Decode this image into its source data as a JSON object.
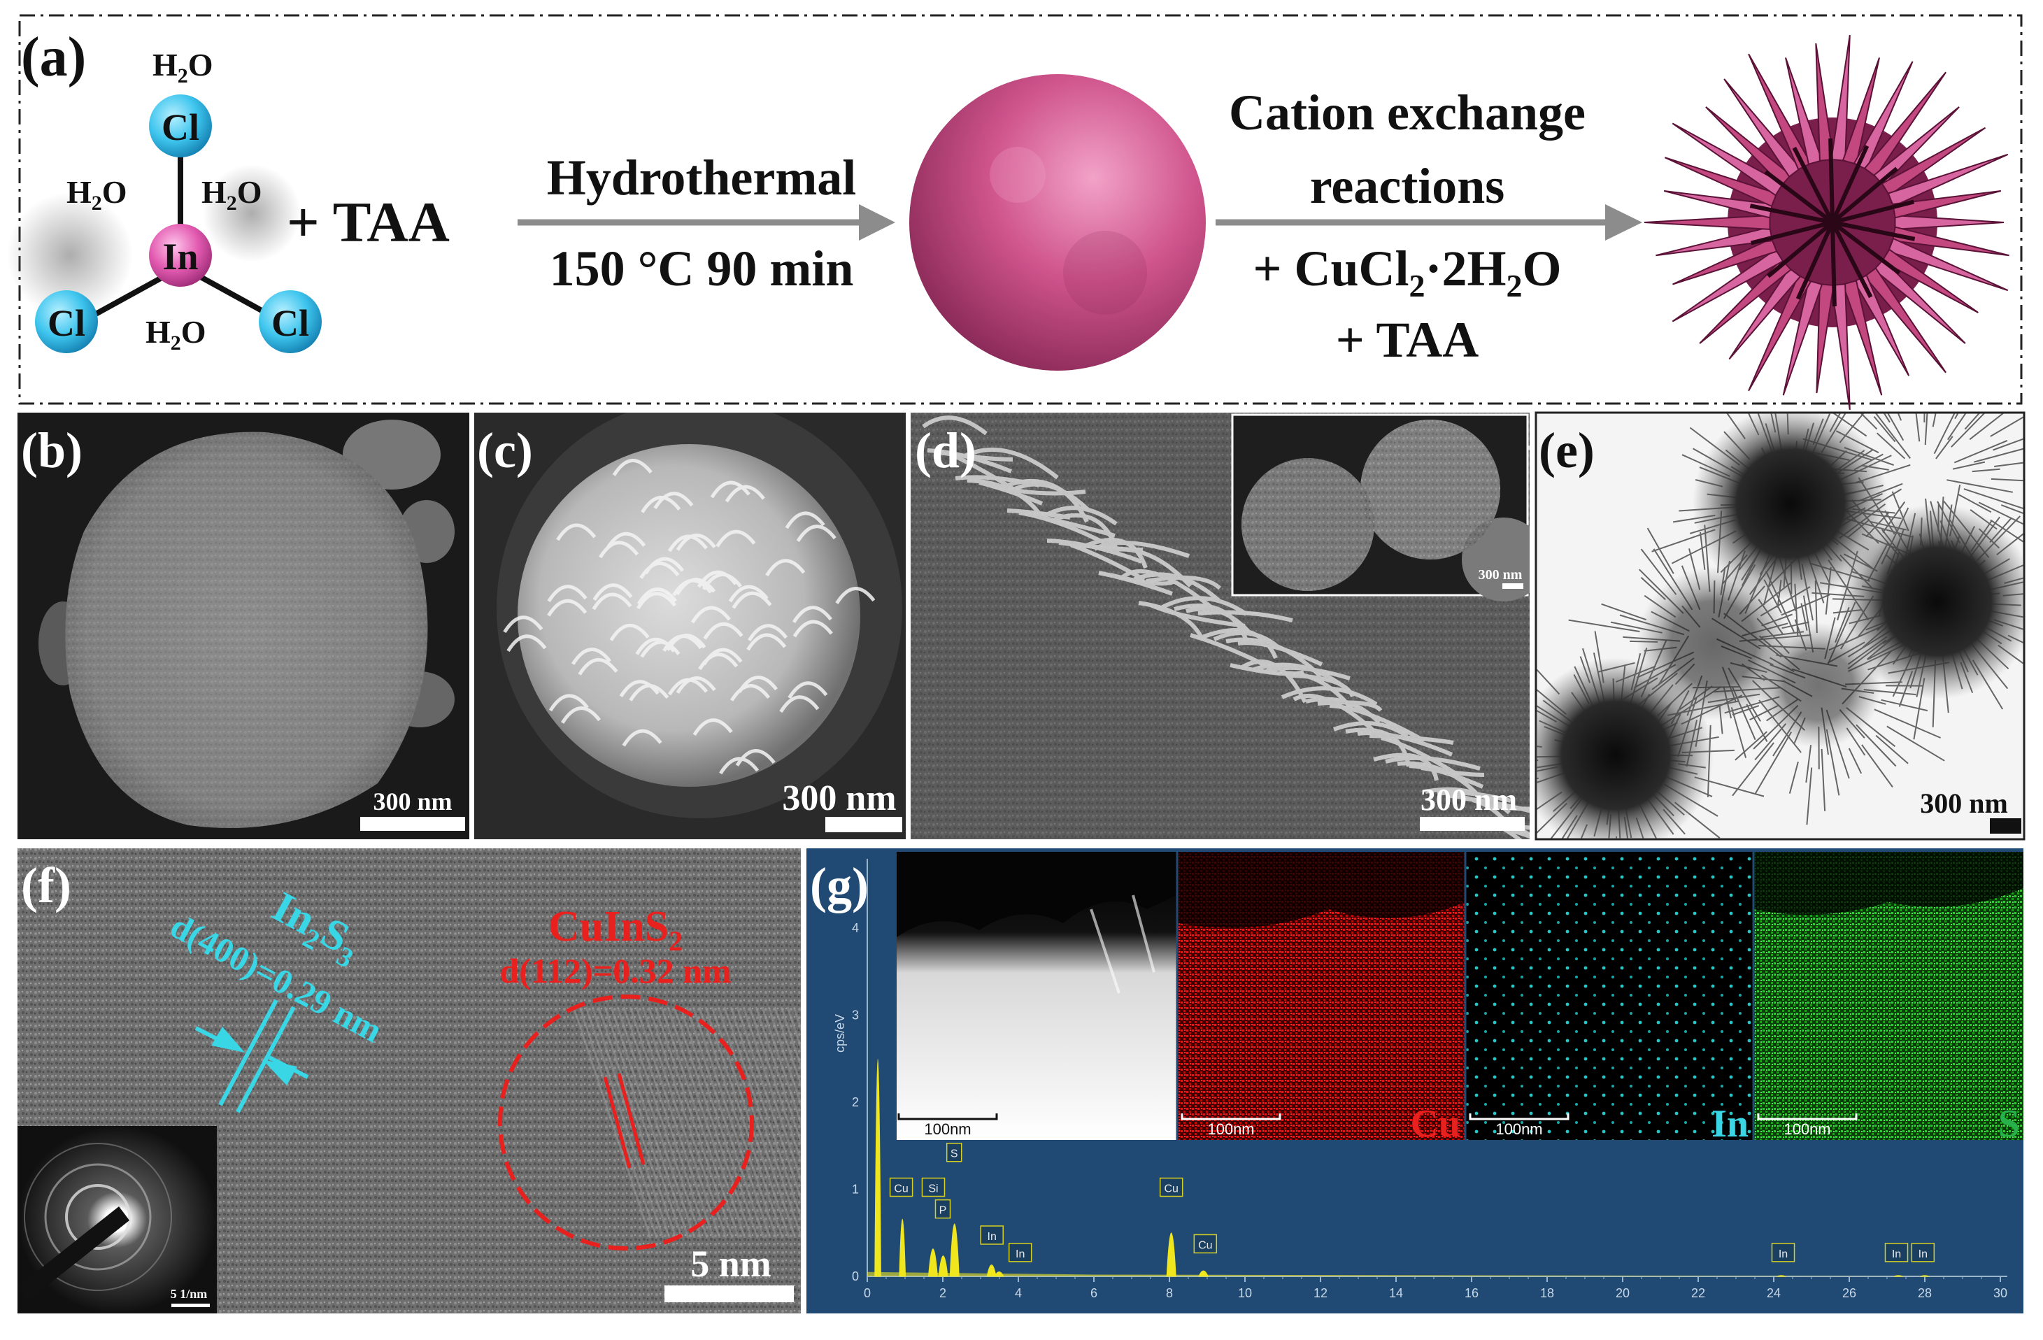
{
  "scheme": {
    "panel_label": "(a)",
    "molecule": {
      "center": "In",
      "ligand": "Cl",
      "water_main": "H",
      "water_sub": "2",
      "water_tail": "O"
    },
    "plus_taa": "+ TAA",
    "step1": {
      "top": "Hydrothermal",
      "bottom": "150 °C 90 min"
    },
    "step2": {
      "line1": "Cation exchange",
      "line2": "reactions",
      "line3_pre": "+ CuCl",
      "line3_sub": "2",
      "line3_mid": "·2H",
      "line3_sub2": "2",
      "line3_post": "O",
      "line4": "+ TAA"
    },
    "colors": {
      "sphere": "#d0578f",
      "flower": "#c2487f",
      "chlorine": "#3ec5ee",
      "indium": "#e25ab0",
      "arrow": "#8c8c8c"
    }
  },
  "panels": {
    "b": {
      "label": "(b)",
      "scale": "300 nm"
    },
    "c": {
      "label": "(c)",
      "scale": "300 nm"
    },
    "d": {
      "label": "(d)",
      "scale": "300 nm",
      "inset_scale": "300 nm"
    },
    "e": {
      "label": "(e)",
      "scale": "300 nm"
    },
    "f": {
      "label": "(f)",
      "in2s3_pre": "In",
      "in2s3_sub1": "2",
      "in2s3_mid": "S",
      "in2s3_sub2": "3",
      "in2s3_d": "d(400)=0.29 nm",
      "cuins2_pre": "CuInS",
      "cuins2_sub": "2",
      "cuins2_d": "d(112)=0.32 nm",
      "scale": "5 nm",
      "saed_scale": "5 1/nm"
    },
    "g": {
      "label": "(g)",
      "y_axis_label": "cps/eV",
      "map_scale": "100nm",
      "elements": [
        "Cu",
        "In",
        "S"
      ],
      "x_ticks": [
        "0",
        "2",
        "4",
        "6",
        "8",
        "10",
        "12",
        "14",
        "16",
        "18",
        "20",
        "22",
        "24",
        "26",
        "28",
        "30"
      ],
      "y_ticks": [
        "0",
        "1",
        "2",
        "3",
        "4"
      ],
      "peak_labels": [
        "Cu",
        "Si",
        "P",
        "S",
        "In",
        "In",
        "Cu",
        "Cu",
        "In",
        "In",
        "In"
      ]
    }
  }
}
